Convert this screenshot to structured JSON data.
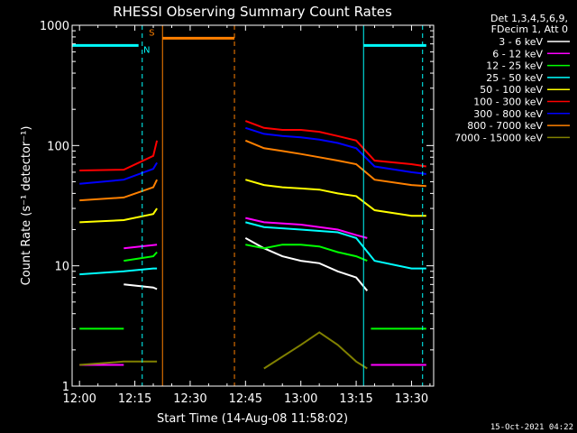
{
  "chart_data": {
    "type": "line",
    "title": "RHESSI Observing Summary Count Rates",
    "xlabel": "Start Time (14-Aug-08 11:58:02)",
    "ylabel": "Count Rate (s⁻¹ detector⁻¹)",
    "yscale": "log",
    "ylim": [
      1,
      1000
    ],
    "xlim_minutes": [
      -2,
      96
    ],
    "x_ticks": [
      {
        "label": "12:00",
        "m": 0
      },
      {
        "label": "12:15",
        "m": 15
      },
      {
        "label": "12:30",
        "m": 30
      },
      {
        "label": "12:45",
        "m": 45
      },
      {
        "label": "13:00",
        "m": 60
      },
      {
        "label": "13:15",
        "m": 75
      },
      {
        "label": "13:30",
        "m": 90
      }
    ],
    "y_ticks": [
      {
        "label": "1",
        "v": 1
      },
      {
        "label": "10",
        "v": 10
      },
      {
        "label": "100",
        "v": 100
      },
      {
        "label": "1000",
        "v": 1000
      }
    ],
    "legend_header": [
      "Det 1,3,4,5,6,9,",
      "FDecim 1, Att 0"
    ],
    "legend_position": "right",
    "series": [
      {
        "name": "3 - 6 keV",
        "color": "#ffffff",
        "segments": [
          [
            [
              12,
              7
            ],
            [
              20,
              6.6
            ],
            [
              21,
              6.4
            ]
          ],
          [
            [
              45,
              17
            ],
            [
              50,
              14
            ],
            [
              55,
              12
            ],
            [
              60,
              11
            ],
            [
              65,
              10.5
            ],
            [
              70,
              9
            ],
            [
              75,
              8
            ],
            [
              78,
              6.2
            ]
          ]
        ]
      },
      {
        "name": "6 - 12 keV",
        "color": "#ff00ff",
        "segments": [
          [
            [
              0,
              1.5
            ],
            [
              12,
              1.5
            ]
          ],
          [
            [
              12,
              14
            ],
            [
              21,
              15
            ]
          ],
          [
            [
              45,
              25
            ],
            [
              50,
              23
            ],
            [
              60,
              22
            ],
            [
              70,
              20
            ],
            [
              75,
              18
            ],
            [
              78,
              17
            ]
          ],
          [
            [
              79,
              1.5
            ],
            [
              94,
              1.5
            ]
          ]
        ]
      },
      {
        "name": "12 - 25 keV",
        "color": "#00ff00",
        "segments": [
          [
            [
              0,
              3
            ],
            [
              12,
              3
            ]
          ],
          [
            [
              12,
              11
            ],
            [
              20,
              12
            ],
            [
              21,
              13
            ]
          ],
          [
            [
              45,
              15
            ],
            [
              50,
              14
            ],
            [
              55,
              15
            ],
            [
              60,
              15
            ],
            [
              65,
              14.5
            ],
            [
              70,
              13
            ],
            [
              75,
              12
            ],
            [
              78,
              11
            ]
          ],
          [
            [
              79,
              3
            ],
            [
              94,
              3
            ]
          ]
        ]
      },
      {
        "name": "25 - 50 keV",
        "color": "#00ffff",
        "segments": [
          [
            [
              0,
              8.5
            ],
            [
              12,
              9
            ],
            [
              20,
              9.5
            ],
            [
              21,
              9.5
            ]
          ],
          [
            [
              45,
              23
            ],
            [
              50,
              21
            ],
            [
              60,
              20
            ],
            [
              70,
              19
            ],
            [
              75,
              17
            ],
            [
              80,
              11
            ],
            [
              90,
              9.5
            ],
            [
              94,
              9.5
            ]
          ]
        ]
      },
      {
        "name": "50 - 100 keV",
        "color": "#ffff00",
        "segments": [
          [
            [
              0,
              23
            ],
            [
              12,
              24
            ],
            [
              20,
              27
            ],
            [
              21,
              30
            ]
          ],
          [
            [
              45,
              52
            ],
            [
              50,
              47
            ],
            [
              55,
              45
            ],
            [
              60,
              44
            ],
            [
              65,
              43
            ],
            [
              70,
              40
            ],
            [
              75,
              38
            ],
            [
              80,
              29
            ],
            [
              90,
              26
            ],
            [
              94,
              26
            ]
          ]
        ]
      },
      {
        "name": "100 - 300 keV",
        "color": "#ff0000",
        "segments": [
          [
            [
              0,
              62
            ],
            [
              12,
              63
            ],
            [
              20,
              82
            ],
            [
              21,
              110
            ]
          ],
          [
            [
              45,
              160
            ],
            [
              50,
              140
            ],
            [
              55,
              135
            ],
            [
              60,
              135
            ],
            [
              65,
              130
            ],
            [
              70,
              120
            ],
            [
              75,
              110
            ],
            [
              80,
              75
            ],
            [
              90,
              70
            ],
            [
              94,
              67
            ]
          ]
        ]
      },
      {
        "name": "300 - 800 keV",
        "color": "#0000ff",
        "segments": [
          [
            [
              0,
              48
            ],
            [
              12,
              52
            ],
            [
              20,
              64
            ],
            [
              21,
              72
            ]
          ],
          [
            [
              45,
              140
            ],
            [
              50,
              125
            ],
            [
              55,
              120
            ],
            [
              60,
              117
            ],
            [
              65,
              112
            ],
            [
              70,
              105
            ],
            [
              75,
              95
            ],
            [
              80,
              67
            ],
            [
              90,
              60
            ],
            [
              94,
              58
            ]
          ]
        ]
      },
      {
        "name": "800 - 7000 keV",
        "color": "#ff8000",
        "segments": [
          [
            [
              0,
              35
            ],
            [
              12,
              37
            ],
            [
              20,
              45
            ],
            [
              21,
              52
            ]
          ],
          [
            [
              45,
              110
            ],
            [
              50,
              95
            ],
            [
              55,
              90
            ],
            [
              60,
              85
            ],
            [
              65,
              80
            ],
            [
              70,
              75
            ],
            [
              75,
              70
            ],
            [
              80,
              52
            ],
            [
              90,
              47
            ],
            [
              94,
              46
            ]
          ]
        ]
      },
      {
        "name": "7000 - 15000 keV",
        "color": "#808000",
        "segments": [
          [
            [
              0,
              1.5
            ],
            [
              12,
              1.6
            ],
            [
              21,
              1.6
            ]
          ],
          [
            [
              50,
              1.4
            ],
            [
              60,
              2.2
            ],
            [
              65,
              2.8
            ],
            [
              70,
              2.2
            ],
            [
              75,
              1.6
            ],
            [
              78,
              1.4
            ]
          ]
        ]
      }
    ],
    "annotations": [
      {
        "label": "N",
        "color": "#00ffff",
        "bar_segments": [
          [
            -2,
            16
          ],
          [
            77,
            94
          ]
        ],
        "bar_value": 680,
        "dashed_at": [
          17,
          93
        ],
        "solid_at": [
          77
        ]
      },
      {
        "label": "S",
        "color": "#ff8000",
        "bar_segments": [
          [
            22.5,
            42
          ]
        ],
        "bar_value": 780,
        "dashed_at": [
          42
        ],
        "solid_at": [
          22.5
        ]
      }
    ],
    "footer_date": "15-Oct-2021 04:22"
  }
}
